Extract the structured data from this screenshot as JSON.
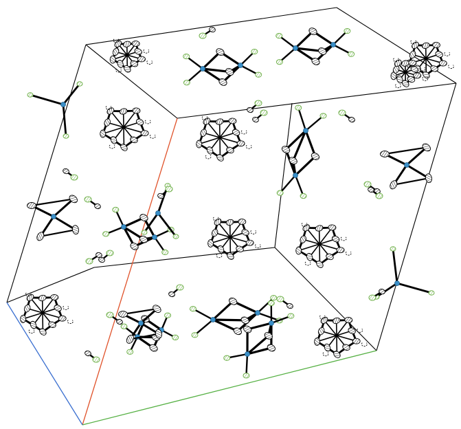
{
  "figure": {
    "kind": "crystal-packing-diagram",
    "background": "#ffffff",
    "colors": {
      "cell_edge": "#000000",
      "axis_a": "#e0522a",
      "axis_b": "#55b043",
      "axis_c": "#3a6fd0",
      "bond": "#000000",
      "metal_atom": "#3a8fc8",
      "halide_atom": "#6fb04a",
      "cluster_atom": "#ffffff"
    },
    "molecule_types": [
      "icosahedral-cluster",
      "bridged-dimer",
      "three-coordinate-anion"
    ]
  }
}
